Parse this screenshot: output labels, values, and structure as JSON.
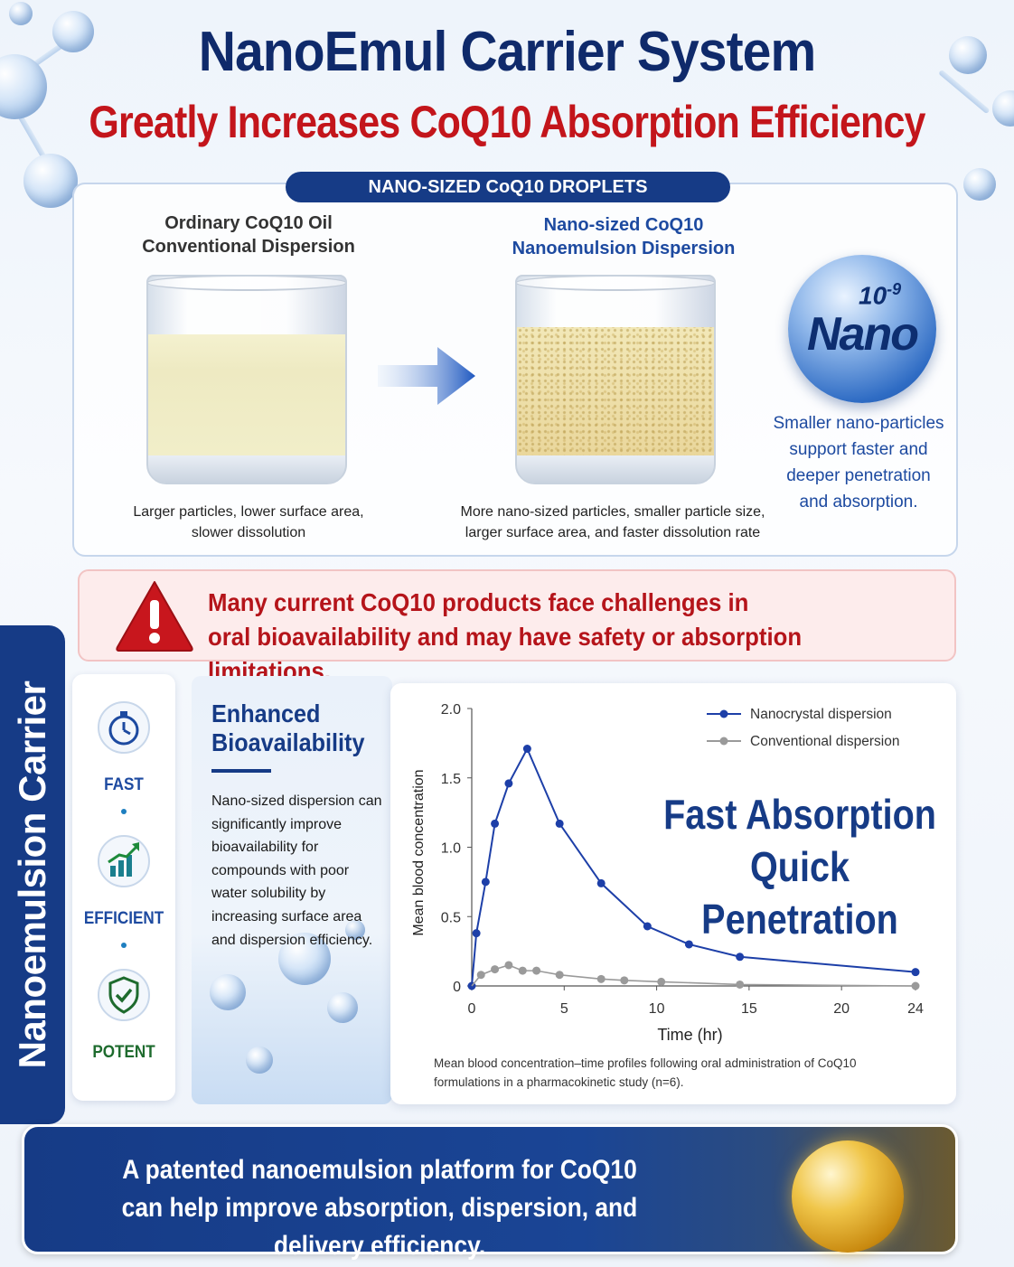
{
  "header": {
    "title": "NanoEmul Carrier System",
    "subtitle": "Greatly Increases CoQ10 Absorption Efficiency"
  },
  "droplets": {
    "tag": "NANO-SIZED CoQ10 DROPLETS",
    "left": {
      "heading_line1": "Ordinary CoQ10 Oil",
      "heading_line2": "Conventional Dispersion",
      "caption_line1": "Larger particles, lower surface area,",
      "caption_line2": "slower dissolution"
    },
    "right": {
      "heading_line1": "Nano-sized CoQ10",
      "heading_line2": "Nanoemulsion Dispersion",
      "caption_line1": "More nano-sized particles, smaller particle size,",
      "caption_line2": "larger surface area, and faster dissolution rate"
    },
    "nano_badge": {
      "exponent_base": "10",
      "exponent": "-9",
      "word": "Nano",
      "text_line1": "Smaller nano-particles",
      "text_line2": "support faster and",
      "text_line3": "deeper penetration",
      "text_line4": "and absorption."
    }
  },
  "warning": {
    "line1": "Many current CoQ10 products face challenges in",
    "line2": "oral bioavailability and may have safety or absorption limitations."
  },
  "side_band": {
    "label": "Nanoemulsion Carrier"
  },
  "features": [
    {
      "label": "FAST",
      "icon": "stopwatch-icon",
      "color": "#1d4aa0"
    },
    {
      "label": "EFFICIENT",
      "icon": "growth-chart-icon",
      "color": "#1d4aa0"
    },
    {
      "label": "POTENT",
      "icon": "shield-check-icon",
      "color": "#1e6b2e"
    }
  ],
  "enhanced": {
    "title_line1": "Enhanced",
    "title_line2": "Bioavailability",
    "body_line1": "Nano-sized dispersion can",
    "body_line2": "significantly improve",
    "body_line3": "bioavailability for",
    "body_line4": "compounds with poor",
    "body_line5": "water solubility by",
    "body_line6": "increasing surface area",
    "body_line7": "and dispersion efficiency."
  },
  "chart_data": {
    "type": "line",
    "xlabel": "Time (hr)",
    "ylabel": "Mean blood concentration",
    "xlim": [
      0,
      24
    ],
    "ylim": [
      0,
      2.0
    ],
    "x_ticks": [
      0,
      5,
      10,
      15,
      20,
      24
    ],
    "y_ticks": [
      0,
      0.5,
      1.0,
      1.5,
      2.0
    ],
    "y_tick_labels": [
      "0",
      "0.5",
      "1.0",
      "1.5",
      "2.0"
    ],
    "legend_position": "top-right",
    "grid": false,
    "series": [
      {
        "name": "Nanocrystal dispersion",
        "color": "#1d3fa8",
        "points": [
          [
            0,
            0
          ],
          [
            0.25,
            0.38
          ],
          [
            0.75,
            0.75
          ],
          [
            1.25,
            1.17
          ],
          [
            2,
            1.46
          ],
          [
            3,
            1.71
          ],
          [
            4.75,
            1.17
          ],
          [
            7,
            0.74
          ],
          [
            9.5,
            0.43
          ],
          [
            11.75,
            0.3
          ],
          [
            14.5,
            0.21
          ],
          [
            24,
            0.1
          ]
        ]
      },
      {
        "name": "Conventional dispersion",
        "color": "#9a9a9a",
        "points": [
          [
            0,
            0
          ],
          [
            0.5,
            0.08
          ],
          [
            1.25,
            0.12
          ],
          [
            2,
            0.15
          ],
          [
            2.75,
            0.11
          ],
          [
            3.5,
            0.11
          ],
          [
            4.75,
            0.08
          ],
          [
            7,
            0.05
          ],
          [
            8.25,
            0.04
          ],
          [
            10.25,
            0.03
          ],
          [
            14.5,
            0.01
          ],
          [
            24,
            0.0
          ]
        ]
      }
    ]
  },
  "chart_callout": {
    "line1": "Fast Absorption",
    "line2": "Quick Penetration"
  },
  "chart_note": {
    "line1": "Mean blood concentration–time profiles following oral administration of CoQ10",
    "line2": "formulations in a pharmacokinetic study (n=6)."
  },
  "footer": {
    "line1": "A patented nanoemulsion platform for CoQ10",
    "line2": "can help improve absorption, dispersion, and delivery efficiency."
  },
  "colors": {
    "navy": "#163b86",
    "red": "#c3151b",
    "title": "#0f2a6b"
  }
}
